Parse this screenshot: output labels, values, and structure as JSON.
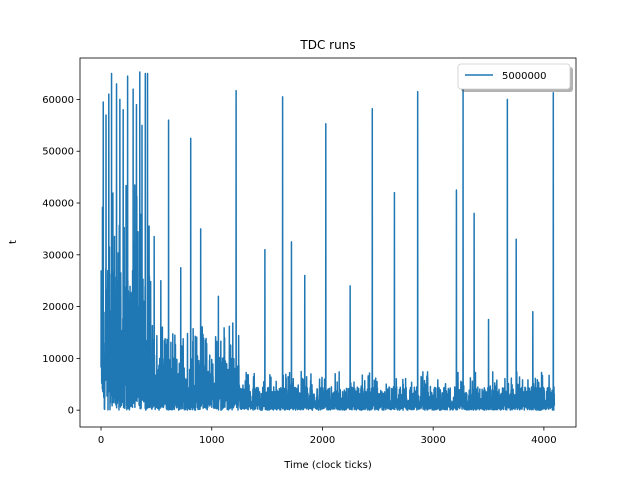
{
  "chart_data": {
    "type": "line",
    "title": "TDC runs",
    "xlabel": "Time (clock ticks)",
    "ylabel": "t",
    "xlim": [
      -190,
      4290
    ],
    "ylim": [
      -3250,
      68000
    ],
    "xticks": [
      0,
      1000,
      2000,
      3000,
      4000
    ],
    "yticks": [
      0,
      10000,
      20000,
      30000,
      40000,
      50000,
      60000
    ],
    "xtick_labels": [
      "0",
      "1000",
      "2000",
      "3000",
      "4000"
    ],
    "ytick_labels": [
      "0",
      "10000",
      "20000",
      "30000",
      "40000",
      "50000",
      "60000"
    ],
    "legend": {
      "position": "top-right",
      "entries": [
        "5000000"
      ]
    },
    "grid": false,
    "series": [
      {
        "name": "5000000",
        "color": "#1f77b4",
        "n_points": 4096,
        "x_range": [
          0,
          4095
        ],
        "peaks": [
          {
            "x": 20,
            "y": 59500
          },
          {
            "x": 45,
            "y": 57000
          },
          {
            "x": 70,
            "y": 61000
          },
          {
            "x": 95,
            "y": 65000
          },
          {
            "x": 140,
            "y": 63000
          },
          {
            "x": 170,
            "y": 60000
          },
          {
            "x": 200,
            "y": 58000
          },
          {
            "x": 240,
            "y": 64500
          },
          {
            "x": 290,
            "y": 62000
          },
          {
            "x": 320,
            "y": 59000
          },
          {
            "x": 350,
            "y": 65300
          },
          {
            "x": 370,
            "y": 55000
          },
          {
            "x": 400,
            "y": 65000
          },
          {
            "x": 420,
            "y": 65000
          },
          {
            "x": 480,
            "y": 33500
          },
          {
            "x": 540,
            "y": 25000
          },
          {
            "x": 610,
            "y": 56000
          },
          {
            "x": 720,
            "y": 27500
          },
          {
            "x": 810,
            "y": 52500
          },
          {
            "x": 900,
            "y": 35000
          },
          {
            "x": 1060,
            "y": 22000
          },
          {
            "x": 1220,
            "y": 61700
          },
          {
            "x": 1480,
            "y": 31000
          },
          {
            "x": 1640,
            "y": 60500
          },
          {
            "x": 1720,
            "y": 32500
          },
          {
            "x": 1840,
            "y": 26000
          },
          {
            "x": 2030,
            "y": 55300
          },
          {
            "x": 2250,
            "y": 24000
          },
          {
            "x": 2450,
            "y": 58200
          },
          {
            "x": 2650,
            "y": 42000
          },
          {
            "x": 2860,
            "y": 61500
          },
          {
            "x": 3210,
            "y": 42500
          },
          {
            "x": 3270,
            "y": 63500
          },
          {
            "x": 3370,
            "y": 38000
          },
          {
            "x": 3500,
            "y": 17500
          },
          {
            "x": 3670,
            "y": 60000
          },
          {
            "x": 3750,
            "y": 33000
          },
          {
            "x": 3900,
            "y": 19000
          },
          {
            "x": 4085,
            "y": 61300
          }
        ],
        "typical_max_by_segment": [
          {
            "x_from": 0,
            "x_to": 450,
            "y": 45000
          },
          {
            "x_from": 450,
            "y_note": "",
            "x_to": 1250,
            "y": 17000
          },
          {
            "x_from": 1250,
            "x_to": 4095,
            "y": 7500
          }
        ]
      }
    ]
  }
}
